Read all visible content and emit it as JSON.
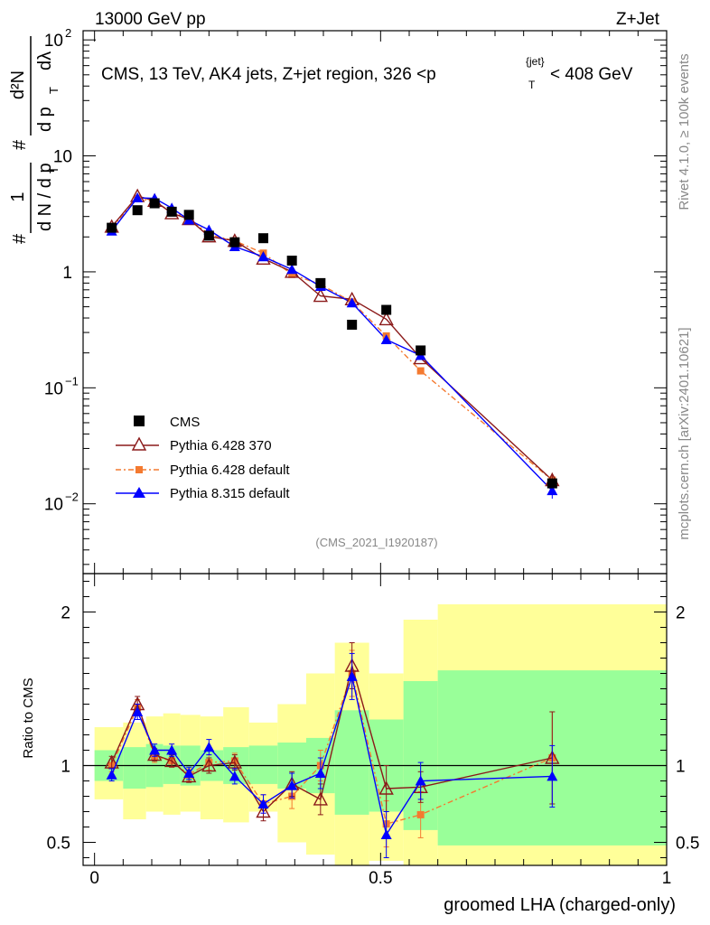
{
  "header": {
    "left": "13000 GeV pp",
    "right": "Z+Jet"
  },
  "side_labels": {
    "rivet": "Rivet 4.1.0, ≥ 100k events",
    "mcplots": "mcplots.cern.ch [arXiv:2401.10621]"
  },
  "chart_data": [
    {
      "type": "scatter",
      "panel": "main",
      "title": "CMS, 13 TeV, AK4 jets, Z+jet region, 326 <p_T^{jet}< 408 GeV",
      "title_main": "CMS, 13 TeV, AK4 jets, Z+jet region, 326 <p",
      "title_sub": "T",
      "title_sup": "{jet}",
      "title_end": "< 408 GeV",
      "ylabel": "1/N dN/dpT dλ",
      "ylabel_parts": {
        "frac1_num": "1",
        "frac1_den": "d N / d p",
        "frac1_den_sub": "T",
        "frac2_num": "d²N",
        "frac2_den": "d p",
        "frac2_den_sub": "T",
        "frac2_den_end": "dλ",
        "hash": "#"
      },
      "yscale": "log",
      "ylim": [
        0.0025,
        120
      ],
      "xlim": [
        -0.02,
        1.0
      ],
      "yticks": [
        {
          "value": 100,
          "base": "10",
          "exp": "2"
        },
        {
          "value": 10,
          "base": "10",
          "exp": ""
        },
        {
          "value": 1,
          "base": "1",
          "exp": ""
        },
        {
          "value": 0.1,
          "base": "10",
          "exp": "−1"
        },
        {
          "value": 0.01,
          "base": "10",
          "exp": "−2"
        }
      ],
      "watermark": "(CMS_2021_I1920187)",
      "legend_position": "middle-left",
      "x": [
        0.03,
        0.075,
        0.105,
        0.135,
        0.165,
        0.2,
        0.245,
        0.295,
        0.345,
        0.395,
        0.45,
        0.51,
        0.57,
        0.8
      ],
      "series": [
        {
          "name": "CMS",
          "color": "#000000",
          "marker": "square",
          "values": [
            2.4,
            3.4,
            3.9,
            3.3,
            3.1,
            2.05,
            1.8,
            1.95,
            1.25,
            0.8,
            0.35,
            0.47,
            0.21,
            0.015
          ]
        },
        {
          "name": "Pythia 6.428 370",
          "color": "#8b1a1a",
          "marker": "open-triangle",
          "line": "solid",
          "values": [
            2.45,
            4.5,
            4.1,
            3.2,
            2.85,
            2.02,
            1.85,
            1.3,
            1.0,
            0.62,
            0.58,
            0.39,
            0.18,
            0.016
          ]
        },
        {
          "name": "Pythia 6.428 default",
          "color": "#f47a30",
          "marker": "filled-square",
          "line": "dashdot",
          "values": [
            2.4,
            4.3,
            4.0,
            3.3,
            2.9,
            2.1,
            1.85,
            1.45,
            0.95,
            0.78,
            0.55,
            0.28,
            0.14,
            0.016
          ]
        },
        {
          "name": "Pythia 8.315 default",
          "color": "#0000ff",
          "marker": "filled-triangle",
          "line": "solid",
          "values": [
            2.25,
            4.35,
            4.3,
            3.55,
            2.8,
            2.3,
            1.65,
            1.35,
            1.05,
            0.75,
            0.54,
            0.26,
            0.19,
            0.013
          ]
        }
      ]
    },
    {
      "type": "line",
      "panel": "ratio",
      "ylabel": "Ratio to CMS",
      "xlabel": "groomed LHA (charged-only)",
      "xlim": [
        -0.02,
        1.0
      ],
      "ylim": [
        0.35,
        2.25
      ],
      "xticks": [
        {
          "value": 0,
          "label": "0"
        },
        {
          "value": 0.5,
          "label": "0.5"
        },
        {
          "value": 1,
          "label": "1"
        }
      ],
      "yticks": [
        {
          "value": 2,
          "label": "2"
        },
        {
          "value": 1,
          "label": "1"
        },
        {
          "value": 0.5,
          "label": "0.5"
        }
      ],
      "reference_line": 1,
      "bands": [
        {
          "x0": 0.0,
          "x1": 0.05,
          "green": [
            0.9,
            1.1
          ],
          "yellow": [
            0.78,
            1.25
          ]
        },
        {
          "x0": 0.05,
          "x1": 0.09,
          "green": [
            0.85,
            1.12
          ],
          "yellow": [
            0.65,
            1.28
          ]
        },
        {
          "x0": 0.09,
          "x1": 0.12,
          "green": [
            0.86,
            1.14
          ],
          "yellow": [
            0.7,
            1.32
          ]
        },
        {
          "x0": 0.12,
          "x1": 0.15,
          "green": [
            0.88,
            1.13
          ],
          "yellow": [
            0.68,
            1.34
          ]
        },
        {
          "x0": 0.15,
          "x1": 0.185,
          "green": [
            0.87,
            1.13
          ],
          "yellow": [
            0.7,
            1.33
          ]
        },
        {
          "x0": 0.185,
          "x1": 0.225,
          "green": [
            0.9,
            1.1
          ],
          "yellow": [
            0.65,
            1.32
          ]
        },
        {
          "x0": 0.225,
          "x1": 0.27,
          "green": [
            0.88,
            1.12
          ],
          "yellow": [
            0.63,
            1.38
          ]
        },
        {
          "x0": 0.27,
          "x1": 0.32,
          "green": [
            0.88,
            1.13
          ],
          "yellow": [
            0.7,
            1.28
          ]
        },
        {
          "x0": 0.32,
          "x1": 0.37,
          "green": [
            0.85,
            1.15
          ],
          "yellow": [
            0.5,
            1.4
          ]
        },
        {
          "x0": 0.37,
          "x1": 0.42,
          "green": [
            0.82,
            1.18
          ],
          "yellow": [
            0.42,
            1.6
          ]
        },
        {
          "x0": 0.42,
          "x1": 0.48,
          "green": [
            0.68,
            1.36
          ],
          "yellow": [
            0.35,
            1.8
          ]
        },
        {
          "x0": 0.48,
          "x1": 0.54,
          "green": [
            0.7,
            1.3
          ],
          "yellow": [
            0.38,
            1.6
          ]
        },
        {
          "x0": 0.54,
          "x1": 0.6,
          "green": [
            0.58,
            1.55
          ],
          "yellow": [
            0.35,
            1.95
          ]
        },
        {
          "x0": 0.6,
          "x1": 1.0,
          "green": [
            0.48,
            1.62
          ],
          "yellow": [
            0.35,
            2.05
          ]
        }
      ],
      "x": [
        0.03,
        0.075,
        0.105,
        0.135,
        0.165,
        0.2,
        0.245,
        0.295,
        0.345,
        0.395,
        0.45,
        0.51,
        0.57,
        0.8
      ],
      "series": [
        {
          "name": "Pythia 6.428 370",
          "color": "#8b1a1a",
          "marker": "open-triangle",
          "line": "solid",
          "values": [
            1.02,
            1.4,
            1.07,
            1.03,
            0.93,
            1.0,
            1.02,
            0.7,
            0.88,
            0.78,
            1.65,
            0.85,
            0.86,
            1.05
          ],
          "errors": [
            0.04,
            0.05,
            0.04,
            0.04,
            0.04,
            0.05,
            0.05,
            0.06,
            0.08,
            0.1,
            0.15,
            0.15,
            0.1,
            0.3
          ]
        },
        {
          "name": "Pythia 6.428 default",
          "color": "#f47a30",
          "marker": "filled-square",
          "line": "dashdot",
          "values": [
            1.0,
            1.38,
            1.06,
            1.03,
            0.94,
            1.02,
            1.03,
            0.75,
            0.8,
            1.0,
            1.6,
            0.62,
            0.68,
            1.05
          ],
          "errors": [
            0.04,
            0.05,
            0.04,
            0.04,
            0.04,
            0.05,
            0.05,
            0.06,
            0.08,
            0.1,
            0.15,
            0.15,
            0.15,
            0.3
          ]
        },
        {
          "name": "Pythia 8.315 default",
          "color": "#0000ff",
          "marker": "filled-triangle",
          "line": "solid",
          "values": [
            0.94,
            1.35,
            1.1,
            1.1,
            0.95,
            1.12,
            0.93,
            0.75,
            0.87,
            0.95,
            1.58,
            0.55,
            0.9,
            0.93
          ],
          "errors": [
            0.04,
            0.05,
            0.04,
            0.04,
            0.04,
            0.05,
            0.05,
            0.06,
            0.08,
            0.1,
            0.15,
            0.15,
            0.12,
            0.2
          ]
        }
      ]
    }
  ]
}
